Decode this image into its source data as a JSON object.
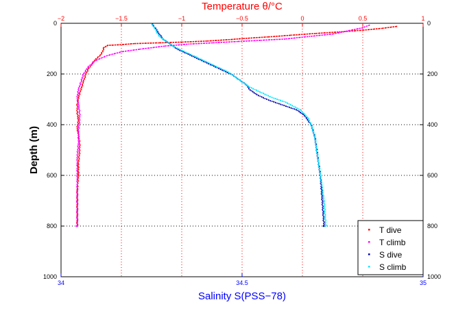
{
  "chart_data": {
    "type": "scatter",
    "title": "Temperature θ/°C",
    "xlabel": "Salinity S(PSS−78)",
    "ylabel": "Depth (m)",
    "x_bottom": {
      "lim": [
        34,
        35
      ],
      "ticks": [
        34,
        34.5,
        35
      ],
      "tick_labels": [
        "34",
        "34.5",
        "35"
      ],
      "color": "#0000ff"
    },
    "x_top": {
      "lim": [
        -2,
        1
      ],
      "ticks": [
        -2,
        -1.5,
        -1,
        -0.5,
        0,
        0.5,
        1
      ],
      "tick_labels": [
        "−2",
        "−1.5",
        "−1",
        "−0.5",
        "0",
        "0.5",
        "1"
      ],
      "color": "#ff0000"
    },
    "y": {
      "lim": [
        0,
        1000
      ],
      "reversed": true,
      "ticks": [
        0,
        200,
        400,
        600,
        800,
        1000
      ],
      "tick_labels": [
        "0",
        "200",
        "400",
        "600",
        "800",
        "1000"
      ]
    },
    "grid": true,
    "legend_position": "bottom-right",
    "series": [
      {
        "name": "T dive",
        "axis": "top",
        "color": "#ff0000",
        "x": [
          0.78,
          0.65,
          0.5,
          0.3,
          0.1,
          -0.1,
          -0.3,
          -0.5,
          -0.6,
          -0.8,
          -1.0,
          -1.2,
          -1.4,
          -1.5,
          -1.62,
          -1.65,
          -1.66,
          -1.68,
          -1.72,
          -1.75,
          -1.78,
          -1.8,
          -1.82,
          -1.84,
          -1.86,
          -1.87,
          -1.87,
          -1.86,
          -1.87,
          -1.86,
          -1.85,
          -1.85,
          -1.86,
          -1.86,
          -1.87,
          -1.87,
          -1.87
        ],
        "y": [
          10,
          18,
          25,
          32,
          38,
          45,
          52,
          58,
          62,
          68,
          72,
          75,
          78,
          82,
          85,
          95,
          110,
          125,
          140,
          160,
          180,
          200,
          230,
          260,
          290,
          320,
          350,
          380,
          410,
          440,
          470,
          500,
          550,
          600,
          650,
          700,
          800
        ]
      },
      {
        "name": "T climb",
        "axis": "top",
        "color": "#ff00ff",
        "x": [
          0.55,
          0.5,
          0.4,
          0.25,
          0.05,
          -0.15,
          -0.35,
          -0.55,
          -0.75,
          -0.95,
          -1.15,
          -1.35,
          -1.5,
          -1.62,
          -1.72,
          -1.78,
          -1.82,
          -1.84,
          -1.86,
          -1.87,
          -1.86,
          -1.85,
          -1.85,
          -1.86,
          -1.86,
          -1.87,
          -1.87,
          -1.87,
          -1.87
        ],
        "y": [
          5,
          15,
          25,
          40,
          50,
          60,
          65,
          70,
          75,
          80,
          88,
          100,
          110,
          125,
          145,
          170,
          200,
          230,
          260,
          290,
          320,
          350,
          380,
          420,
          470,
          520,
          600,
          700,
          800
        ]
      },
      {
        "name": "S dive",
        "axis": "bottom",
        "color": "#0000aa",
        "x": [
          34.25,
          34.26,
          34.27,
          34.28,
          34.3,
          34.32,
          34.35,
          34.38,
          34.41,
          34.44,
          34.47,
          34.49,
          34.51,
          34.52,
          34.54,
          34.57,
          34.61,
          34.65,
          34.67,
          34.68,
          34.69,
          34.7,
          34.705,
          34.71,
          34.715,
          34.72,
          34.725
        ],
        "y": [
          0,
          20,
          40,
          60,
          80,
          100,
          120,
          140,
          160,
          180,
          200,
          220,
          240,
          260,
          280,
          300,
          320,
          340,
          360,
          380,
          400,
          450,
          500,
          550,
          600,
          700,
          800
        ]
      },
      {
        "name": "S climb",
        "axis": "bottom",
        "color": "#00e5ff",
        "x": [
          34.25,
          34.26,
          34.27,
          34.29,
          34.31,
          34.34,
          34.37,
          34.4,
          34.43,
          34.46,
          34.48,
          34.5,
          34.52,
          34.55,
          34.58,
          34.62,
          34.66,
          34.68,
          34.69,
          34.7,
          34.705,
          34.71,
          34.715,
          34.72,
          34.725,
          34.73
        ],
        "y": [
          0,
          25,
          50,
          70,
          90,
          110,
          130,
          150,
          170,
          190,
          210,
          230,
          250,
          270,
          290,
          310,
          340,
          370,
          400,
          450,
          500,
          550,
          600,
          650,
          700,
          800
        ]
      }
    ]
  }
}
